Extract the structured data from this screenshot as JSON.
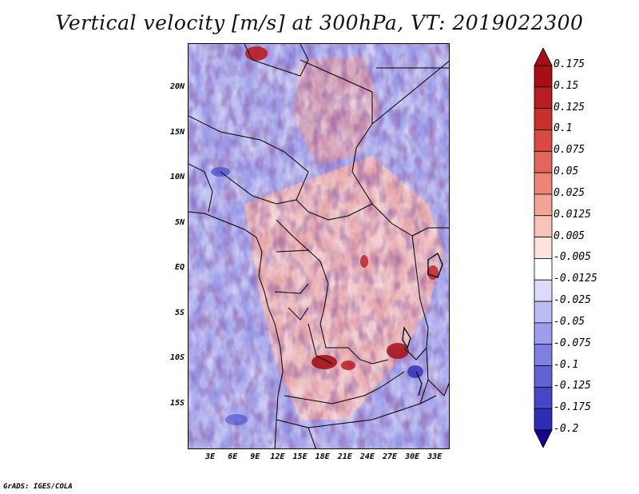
{
  "title": "Vertical velocity [m/s] at 300hPa, VT: 2019022300",
  "credit": "GrADS: IGES/COLA",
  "map": {
    "lat_range": [
      -20,
      25
    ],
    "lon_range": [
      0,
      35
    ],
    "y_ticks": [
      {
        "value": 20,
        "label": "20N"
      },
      {
        "value": 15,
        "label": "15N"
      },
      {
        "value": 10,
        "label": "10N"
      },
      {
        "value": 5,
        "label": "5N"
      },
      {
        "value": 0,
        "label": "EQ"
      },
      {
        "value": -5,
        "label": "5S"
      },
      {
        "value": -10,
        "label": "10S"
      },
      {
        "value": -15,
        "label": "15S"
      }
    ],
    "x_ticks": [
      {
        "value": 3,
        "label": "3E"
      },
      {
        "value": 6,
        "label": "6E"
      },
      {
        "value": 9,
        "label": "9E"
      },
      {
        "value": 12,
        "label": "12E"
      },
      {
        "value": 15,
        "label": "15E"
      },
      {
        "value": 18,
        "label": "18E"
      },
      {
        "value": 21,
        "label": "21E"
      },
      {
        "value": 24,
        "label": "24E"
      },
      {
        "value": 27,
        "label": "27E"
      },
      {
        "value": 30,
        "label": "30E"
      },
      {
        "value": 33,
        "label": "33E"
      }
    ]
  },
  "colorbar": {
    "levels": [
      {
        "label": "0.175",
        "color": "#a50f15"
      },
      {
        "label": "0.15",
        "color": "#b81d22"
      },
      {
        "label": "0.125",
        "color": "#cb2f2c"
      },
      {
        "label": "0.1",
        "color": "#d94a43"
      },
      {
        "label": "0.075",
        "color": "#e3665c"
      },
      {
        "label": "0.05",
        "color": "#ec8478"
      },
      {
        "label": "0.025",
        "color": "#f4a397"
      },
      {
        "label": "0.0125",
        "color": "#f9c3b8"
      },
      {
        "label": "0.005",
        "color": "#fde3dc"
      },
      {
        "label": "-0.005",
        "color": "#ffffff"
      },
      {
        "label": "-0.0125",
        "color": "#dcdcfa"
      },
      {
        "label": "-0.025",
        "color": "#bcbcf3"
      },
      {
        "label": "-0.05",
        "color": "#9d9deb"
      },
      {
        "label": "-0.075",
        "color": "#7f7fe1"
      },
      {
        "label": "-0.1",
        "color": "#6262d5"
      },
      {
        "label": "-0.125",
        "color": "#4646c7"
      },
      {
        "label": "-0.175",
        "color": "#2d2db6"
      },
      {
        "label": "-0.2",
        "color": "#1717a0"
      }
    ],
    "bottom_color": "#1a008c",
    "top_color": "#a50f15"
  }
}
